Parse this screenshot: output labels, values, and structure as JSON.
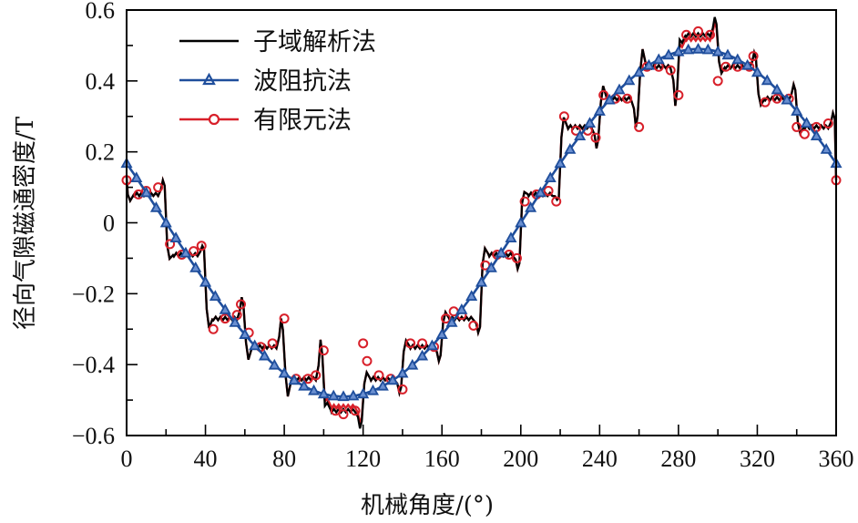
{
  "chart_data": {
    "type": "line",
    "title": "",
    "xlabel": "机械角度/(°)",
    "ylabel": "径向气隙磁通密度/T",
    "xlim": [
      0,
      360
    ],
    "ylim": [
      -0.6,
      0.6
    ],
    "xticks": [
      0,
      40,
      80,
      120,
      160,
      200,
      240,
      280,
      320,
      360
    ],
    "xtick_labels": [
      "0",
      "40",
      "80",
      "120",
      "160",
      "200",
      "240",
      "280",
      "320",
      "360"
    ],
    "yticks": [
      0.6,
      0.4,
      0.2,
      0,
      -0.2,
      -0.4,
      -0.6
    ],
    "ytick_labels": [
      "0.6",
      "0.4",
      "0.2",
      "0",
      "−0.2",
      "−0.4",
      "−0.6"
    ],
    "x_minor_step": 20,
    "y_minor_step": 0.1,
    "grid": false,
    "legend_position": "upper left",
    "legend": [
      {
        "label": "子域解析法",
        "color": "#000000",
        "marker": "none"
      },
      {
        "label": "波阻抗法",
        "color": "#1f4e9c",
        "marker": "triangle"
      },
      {
        "label": "有限元法",
        "color": "#d8202a",
        "marker": "circle"
      }
    ],
    "series": [
      {
        "name": "子域解析法",
        "color": "#000000",
        "plateaus": [
          {
            "x0": 0,
            "x1": 20,
            "y": 0.08,
            "spike": 0.12
          },
          {
            "x0": 20,
            "x1": 40,
            "y": -0.09,
            "spike": -0.065
          },
          {
            "x0": 40,
            "x1": 60,
            "y": -0.27,
            "spike": -0.21
          },
          {
            "x0": 60,
            "x1": 80,
            "y": -0.35,
            "spike": -0.27
          },
          {
            "x0": 80,
            "x1": 100,
            "y": -0.44,
            "spike": -0.33
          },
          {
            "x0": 100,
            "x1": 120,
            "y": -0.53,
            "spike": -0.58
          },
          {
            "x0": 120,
            "x1": 140,
            "y": -0.44,
            "spike": -0.48
          },
          {
            "x0": 140,
            "x1": 160,
            "y": -0.35,
            "spike": -0.39
          },
          {
            "x0": 160,
            "x1": 180,
            "y": -0.27,
            "spike": -0.31
          },
          {
            "x0": 180,
            "x1": 200,
            "y": -0.09,
            "spike": -0.13
          },
          {
            "x0": 200,
            "x1": 220,
            "y": 0.08,
            "spike": 0.065
          },
          {
            "x0": 220,
            "x1": 240,
            "y": 0.27,
            "spike": 0.21
          },
          {
            "x0": 240,
            "x1": 260,
            "y": 0.35,
            "spike": 0.27
          },
          {
            "x0": 260,
            "x1": 280,
            "y": 0.44,
            "spike": 0.33
          },
          {
            "x0": 280,
            "x1": 300,
            "y": 0.53,
            "spike": 0.58
          },
          {
            "x0": 300,
            "x1": 320,
            "y": 0.44,
            "spike": 0.48
          },
          {
            "x0": 320,
            "x1": 340,
            "y": 0.35,
            "spike": 0.39
          },
          {
            "x0": 340,
            "x1": 360,
            "y": 0.27,
            "spike": 0.31
          }
        ]
      },
      {
        "name": "波阻抗法",
        "color": "#1f4e9c",
        "function": "0.49*cos(x-290°)",
        "x": [
          0,
          5,
          10,
          15,
          20,
          25,
          30,
          35,
          40,
          45,
          50,
          55,
          60,
          65,
          70,
          75,
          80,
          85,
          90,
          95,
          100,
          105,
          110,
          115,
          120,
          125,
          130,
          135,
          140,
          145,
          150,
          155,
          160,
          165,
          170,
          175,
          180,
          185,
          190,
          195,
          200,
          205,
          210,
          215,
          220,
          225,
          230,
          235,
          240,
          245,
          250,
          255,
          260,
          265,
          270,
          275,
          280,
          285,
          290,
          295,
          300,
          305,
          310,
          315,
          320,
          325,
          330,
          335,
          340,
          345,
          350,
          355,
          360
        ],
        "amplitude": 0.49,
        "phase_deg": 290
      },
      {
        "name": "有限元法",
        "color": "#d8202a",
        "points": [
          [
            0,
            0.12
          ],
          [
            6,
            0.08
          ],
          [
            10,
            0.09
          ],
          [
            16,
            0.1
          ],
          [
            22,
            -0.06
          ],
          [
            28,
            -0.09
          ],
          [
            34,
            -0.08
          ],
          [
            38,
            -0.065
          ],
          [
            44,
            -0.3
          ],
          [
            50,
            -0.27
          ],
          [
            56,
            -0.26
          ],
          [
            58,
            -0.23
          ],
          [
            62,
            -0.31
          ],
          [
            68,
            -0.35
          ],
          [
            74,
            -0.34
          ],
          [
            80,
            -0.27
          ],
          [
            86,
            -0.44
          ],
          [
            92,
            -0.44
          ],
          [
            96,
            -0.43
          ],
          [
            100,
            -0.36
          ],
          [
            106,
            -0.53
          ],
          [
            110,
            -0.54
          ],
          [
            116,
            -0.53
          ],
          [
            120,
            -0.34
          ],
          [
            122,
            -0.39
          ],
          [
            128,
            -0.43
          ],
          [
            134,
            -0.44
          ],
          [
            140,
            -0.47
          ],
          [
            144,
            -0.34
          ],
          [
            150,
            -0.34
          ],
          [
            156,
            -0.35
          ],
          [
            162,
            -0.27
          ],
          [
            166,
            -0.25
          ],
          [
            170,
            -0.26
          ],
          [
            176,
            -0.29
          ],
          [
            182,
            -0.12
          ],
          [
            188,
            -0.09
          ],
          [
            194,
            -0.09
          ],
          [
            198,
            -0.1
          ],
          [
            202,
            0.06
          ],
          [
            208,
            0.08
          ],
          [
            214,
            0.09
          ],
          [
            218,
            0.06
          ],
          [
            222,
            0.3
          ],
          [
            228,
            0.26
          ],
          [
            234,
            0.26
          ],
          [
            238,
            0.24
          ],
          [
            242,
            0.36
          ],
          [
            248,
            0.35
          ],
          [
            254,
            0.35
          ],
          [
            260,
            0.27
          ],
          [
            264,
            0.44
          ],
          [
            270,
            0.44
          ],
          [
            276,
            0.43
          ],
          [
            280,
            0.36
          ],
          [
            284,
            0.53
          ],
          [
            290,
            0.54
          ],
          [
            296,
            0.53
          ],
          [
            300,
            0.4
          ],
          [
            304,
            0.44
          ],
          [
            310,
            0.44
          ],
          [
            316,
            0.44
          ],
          [
            318,
            0.47
          ],
          [
            324,
            0.34
          ],
          [
            330,
            0.35
          ],
          [
            336,
            0.35
          ],
          [
            340,
            0.27
          ],
          [
            344,
            0.25
          ],
          [
            350,
            0.27
          ],
          [
            356,
            0.28
          ],
          [
            360,
            0.12
          ]
        ]
      }
    ]
  }
}
